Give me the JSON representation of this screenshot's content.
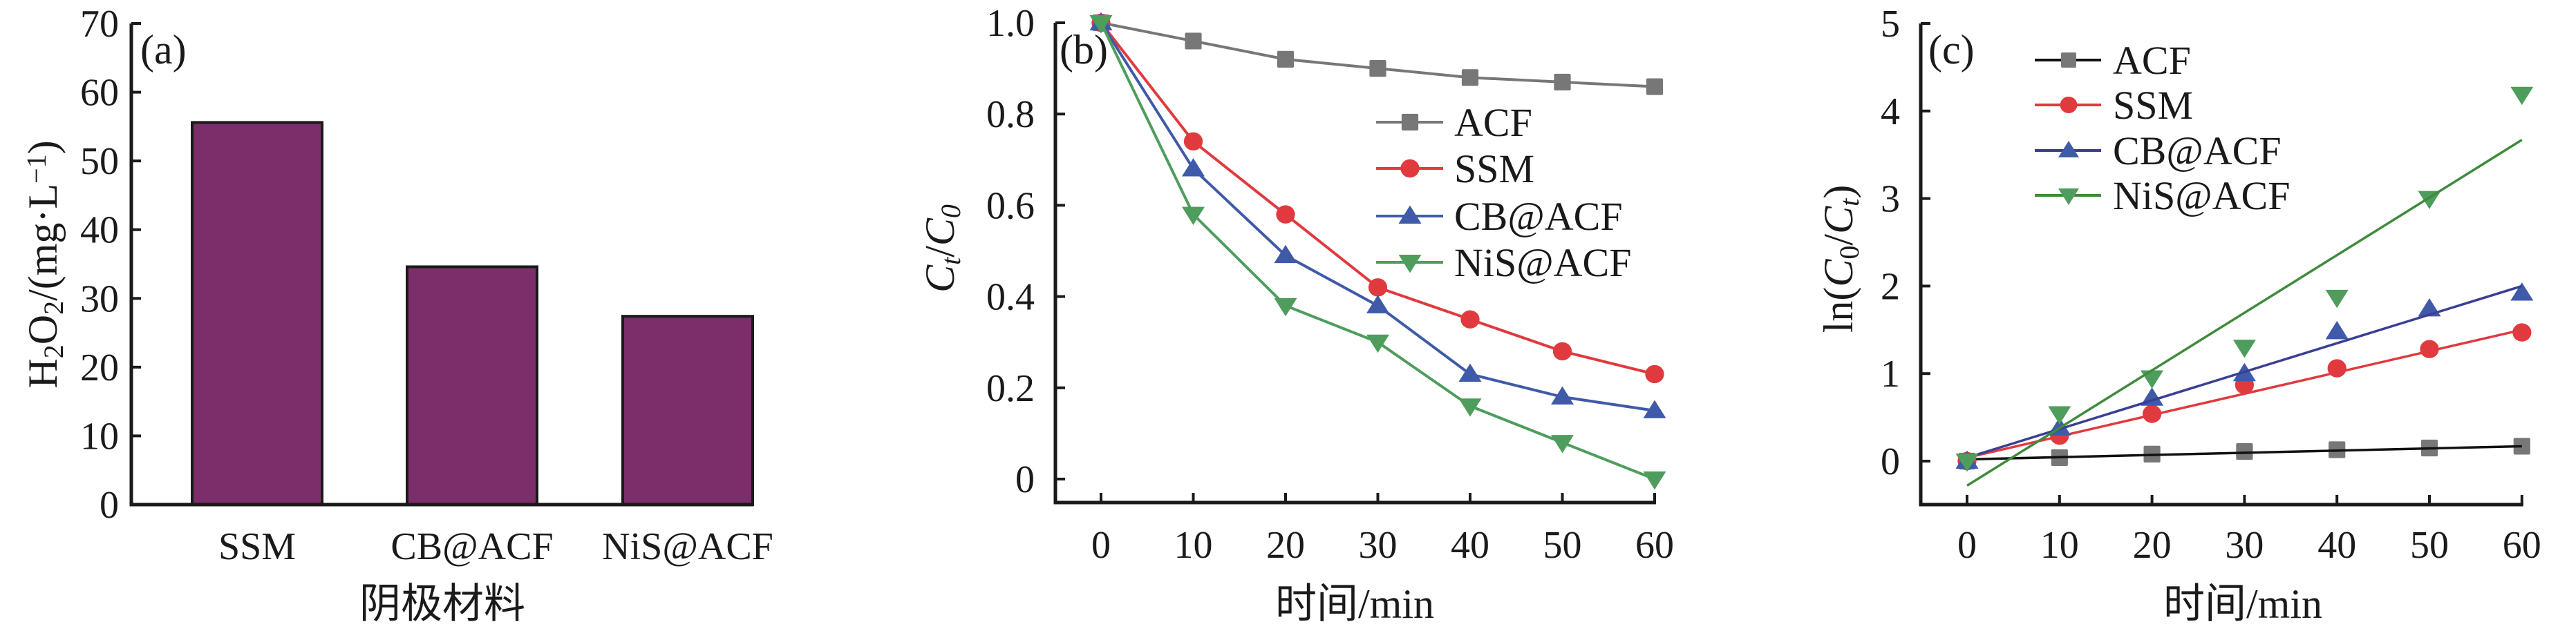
{
  "figure": {
    "panels": [
      "(a)",
      "(b)",
      "(c)"
    ]
  },
  "colors": {
    "bar_fill": "#7b2e69",
    "bar_stroke": "#1a1a1a",
    "ACF_line_b": "#777777",
    "ACF_marker": "#777777",
    "ACF_line_c": "#111111",
    "SSM": "#e03a3e",
    "CB@ACF_b": "#3f5aa8",
    "CB@ACF_c_line": "#3a3f94",
    "NiS@ACF_b": "#4e9d5c",
    "NiS@ACF_c_line": "#3f8a3c"
  },
  "chart_data": [
    {
      "panel": "(a)",
      "type": "bar",
      "title": "",
      "categories": [
        "SSM",
        "CB@ACF",
        "NiS@ACF"
      ],
      "values": [
        55.6,
        34.6,
        27.4
      ],
      "xlabel": "阴极材料",
      "ylabel": "H2O2/(mg·L−1)",
      "ylabel_parts": {
        "main": "H",
        "sub1": "2",
        "mid": "O",
        "sub2": "2",
        "rest": "/(mg·L",
        "sup": "−1",
        "end": ")"
      },
      "ylim": [
        0,
        70
      ],
      "yticks": [
        "0",
        "10",
        "20",
        "30",
        "40",
        "50",
        "60",
        "70"
      ],
      "grid": false,
      "legend": null
    },
    {
      "panel": "(b)",
      "type": "line",
      "title": "",
      "x": [
        0,
        10,
        20,
        30,
        40,
        50,
        60
      ],
      "series": [
        {
          "name": "ACF",
          "marker": "square",
          "values": [
            1.0,
            0.96,
            0.92,
            0.9,
            0.88,
            0.87,
            0.86
          ]
        },
        {
          "name": "SSM",
          "marker": "circle",
          "values": [
            1.0,
            0.74,
            0.58,
            0.42,
            0.35,
            0.28,
            0.23
          ]
        },
        {
          "name": "CB@ACF",
          "marker": "triangle-up",
          "values": [
            1.0,
            0.68,
            0.49,
            0.38,
            0.23,
            0.18,
            0.15
          ]
        },
        {
          "name": "NiS@ACF",
          "marker": "triangle-down",
          "values": [
            1.0,
            0.58,
            0.38,
            0.3,
            0.16,
            0.08,
            0.0
          ]
        }
      ],
      "xlabel": "时间/min",
      "ylabel": "Ct/C0",
      "ylabel_parts": {
        "c1": "C",
        "sub1": "t",
        "slash": "/",
        "c2": "C",
        "sub2": "0"
      },
      "xlim": [
        -5,
        60
      ],
      "ylim": [
        -0.05,
        1.0
      ],
      "xticks": [
        "0",
        "10",
        "20",
        "30",
        "40",
        "50",
        "60"
      ],
      "yticks": [
        "0",
        "0.2",
        "0.4",
        "0.6",
        "0.8",
        "1.0"
      ],
      "grid": false,
      "legend": "center-right"
    },
    {
      "panel": "(c)",
      "type": "scatter",
      "title": "",
      "x": [
        0,
        10,
        20,
        30,
        40,
        50,
        60
      ],
      "series": [
        {
          "name": "ACF",
          "marker": "square",
          "values": [
            0.0,
            0.04,
            0.08,
            0.11,
            0.13,
            0.15,
            0.17
          ],
          "fit": [
            0.02,
            0.17
          ]
        },
        {
          "name": "SSM",
          "marker": "circle",
          "values": [
            0.0,
            0.29,
            0.54,
            0.87,
            1.06,
            1.28,
            1.47
          ],
          "fit": [
            0.04,
            1.5
          ]
        },
        {
          "name": "CB@ACF",
          "marker": "triangle-up",
          "values": [
            0.0,
            0.38,
            0.72,
            1.0,
            1.48,
            1.74,
            1.92
          ],
          "fit": [
            0.04,
            2.0
          ]
        },
        {
          "name": "NiS@ACF",
          "marker": "triangle-down",
          "values": [
            0.0,
            0.54,
            0.95,
            1.3,
            1.87,
            3.0,
            4.19
          ],
          "fit": [
            -0.28,
            3.67
          ]
        }
      ],
      "xlabel": "时间/min",
      "ylabel": "ln(C0/Ct)",
      "ylabel_parts": {
        "pre": "ln(",
        "c1": "C",
        "sub1": "0",
        "slash": "/",
        "c2": "C",
        "sub2": "t",
        "post": ")"
      },
      "xlim": [
        -5,
        60
      ],
      "ylim": [
        -0.5,
        5
      ],
      "xticks": [
        "0",
        "10",
        "20",
        "30",
        "40",
        "50",
        "60"
      ],
      "yticks": [
        "0",
        "1",
        "2",
        "3",
        "4",
        "5"
      ],
      "grid": false,
      "legend": "top-center"
    }
  ]
}
